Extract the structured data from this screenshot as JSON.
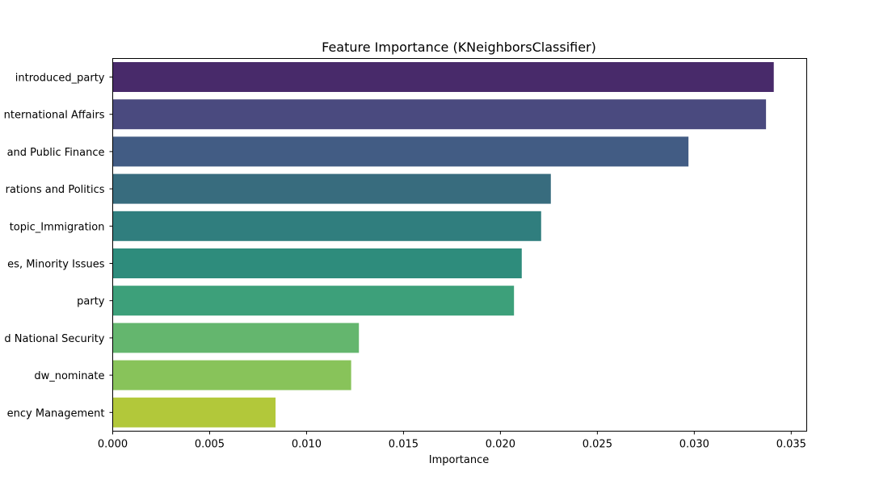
{
  "chart_data": {
    "type": "bar",
    "orientation": "horizontal",
    "title": "Feature Importance (KNeighborsClassifier)",
    "xlabel": "Importance",
    "ylabel": "",
    "xlim": [
      0,
      0.0358
    ],
    "xticks": [
      "0.000",
      "0.005",
      "0.010",
      "0.015",
      "0.020",
      "0.025",
      "0.030",
      "0.035"
    ],
    "grid": false,
    "categories": [
      "introduced_party",
      "nternational Affairs",
      "and Public Finance",
      "rations and Politics",
      "topic_Immigration",
      "es, Minority Issues",
      "party",
      "d National Security",
      "dw_nominate",
      "ency Management"
    ],
    "values": [
      0.0341,
      0.0337,
      0.0297,
      0.0226,
      0.0221,
      0.0211,
      0.0207,
      0.0127,
      0.0123,
      0.0084
    ],
    "colors": [
      "#482A6A",
      "#4A4A7F",
      "#425C84",
      "#386C7E",
      "#307E7E",
      "#2E8C7C",
      "#3DA07A",
      "#64B66E",
      "#88C35A",
      "#B2C83A"
    ]
  }
}
